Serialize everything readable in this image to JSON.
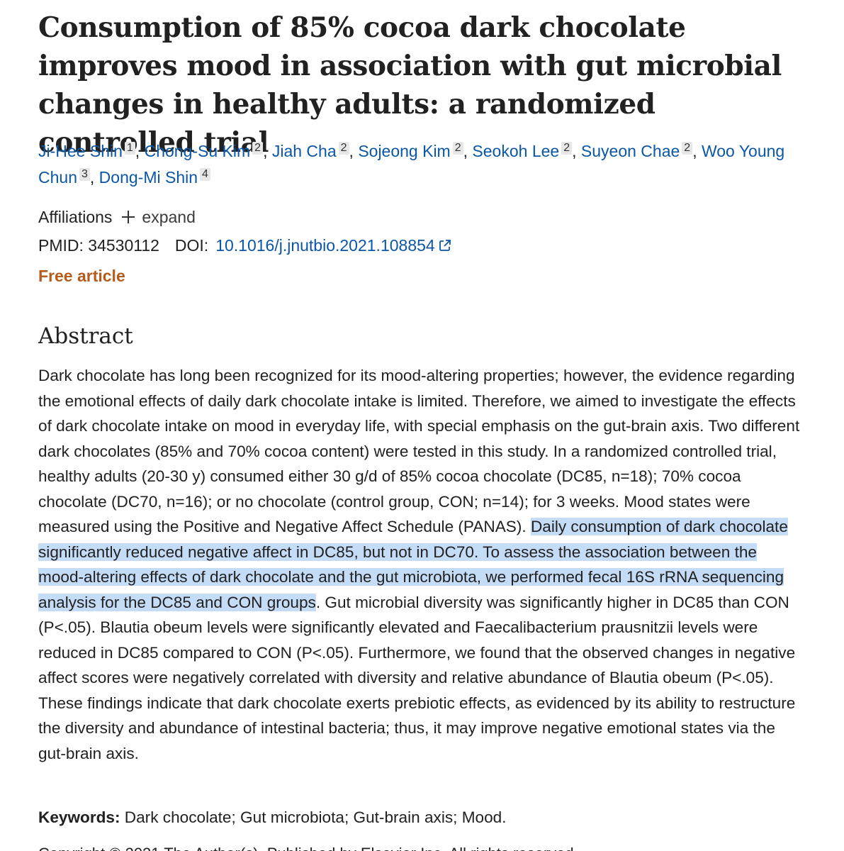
{
  "article": {
    "title": "Consumption of 85% cocoa dark chocolate improves mood in association with gut microbial changes in healthy adults: a randomized controlled trial",
    "authors": [
      {
        "name": "Ji-Hee Shin",
        "aff": "1"
      },
      {
        "name": "Chong-Su Kim",
        "aff": "2"
      },
      {
        "name": "Jiah Cha",
        "aff": "2"
      },
      {
        "name": "Sojeong Kim",
        "aff": "2"
      },
      {
        "name": "Seokoh Lee",
        "aff": "2"
      },
      {
        "name": "Suyeon Chae",
        "aff": "2"
      },
      {
        "name": "Woo Young Chun",
        "aff": "3"
      },
      {
        "name": "Dong-Mi Shin",
        "aff": "4"
      }
    ],
    "separator": ",",
    "affiliations_label": "Affiliations",
    "expand_label": "expand",
    "pmid_label": "PMID:",
    "pmid": "34530112",
    "doi_label": "DOI:",
    "doi": "10.1016/j.jnutbio.2021.108854",
    "free_article": "Free article"
  },
  "abstract": {
    "heading": "Abstract",
    "text_before": "Dark chocolate has long been recognized for its mood-altering properties; however, the evidence regarding the emotional effects of daily dark chocolate intake is limited. Therefore, we aimed to investigate the effects of dark chocolate intake on mood in everyday life, with special emphasis on the gut-brain axis. Two different dark chocolates (85% and 70% cocoa content) were tested in this study. In a randomized controlled trial, healthy adults (20-30 y) consumed either 30 g/d of 85% cocoa chocolate (DC85, n=18); 70% cocoa chocolate (DC70, n=16); or no chocolate (control group, CON; n=14); for 3 weeks. Mood states were measured using the Positive and Negative Affect Schedule (PANAS). ",
    "text_highlighted": "Daily consumption of dark chocolate significantly reduced negative affect in DC85, but not in DC70. To assess the association between the mood-altering effects of dark chocolate and the gut microbiota, we performed fecal 16S rRNA sequencing analysis for the DC85 and CON groups",
    "text_after": ". Gut microbial diversity was significantly higher in DC85 than CON (P<.05). Blautia obeum levels were significantly elevated and Faecalibacterium prausnitzii levels were reduced in DC85 compared to CON (P<.05). Furthermore, we found that the observed changes in negative affect scores were negatively correlated with diversity and relative abundance of Blautia obeum (P<.05). These findings indicate that dark chocolate exerts prebiotic effects, as evidenced by its ability to restructure the diversity and abundance of intestinal bacteria; thus, it may improve negative emotional states via the gut-brain axis."
  },
  "keywords": {
    "label": "Keywords:",
    "text": "Dark chocolate; Gut microbiota; Gut-brain axis; Mood."
  },
  "copyright": {
    "text": "Copyright © 2021 The Author(s). Published by Elsevier Inc. All rights reserved."
  },
  "colors": {
    "link": "#0b57a6",
    "free_article": "#b35c1e",
    "highlight": "#c5dcf7",
    "text": "#212121"
  }
}
